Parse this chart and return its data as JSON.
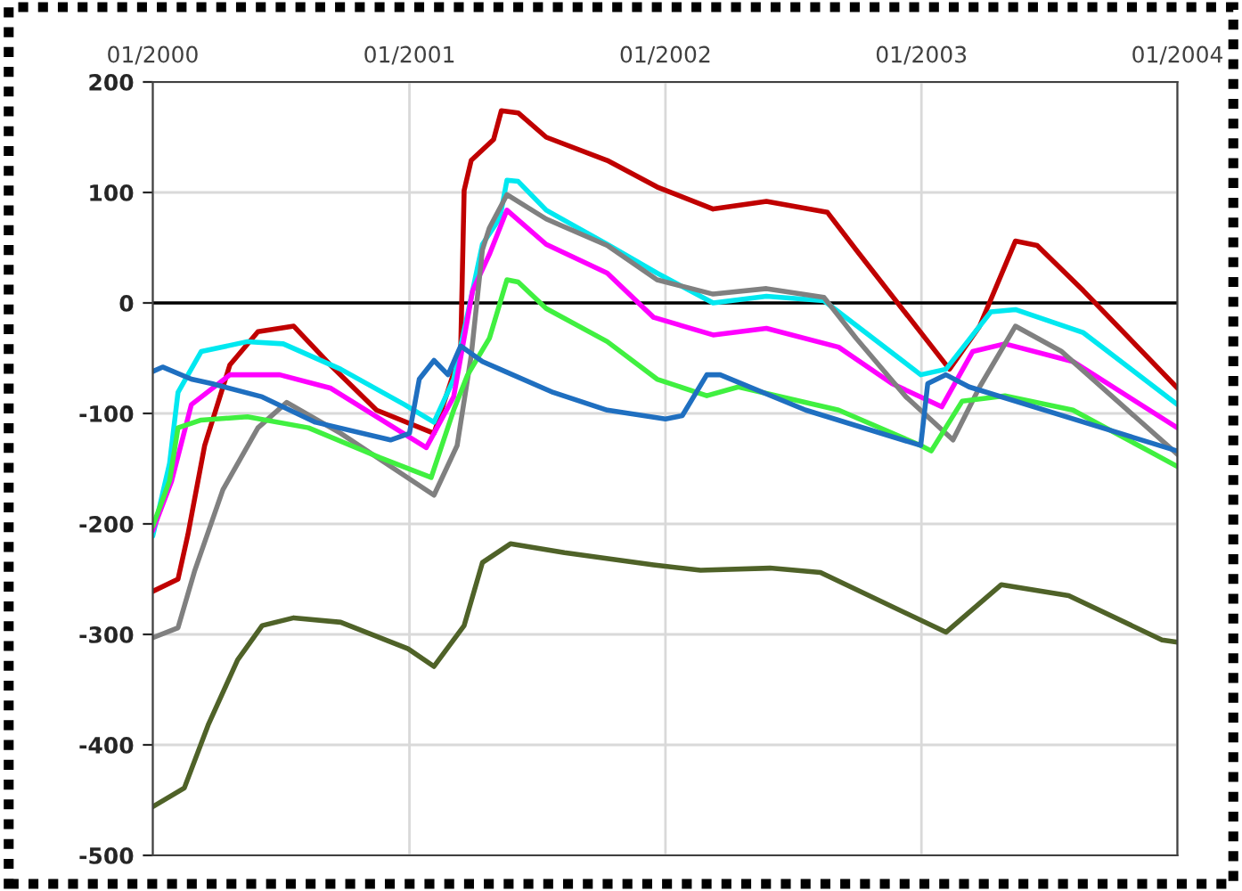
{
  "chart_data": {
    "type": "line",
    "xlim": [
      "2000-01-01",
      "2004-01-01"
    ],
    "xticks": [
      {
        "value": "2000-01-01",
        "label": "01/2000"
      },
      {
        "value": "2001-01-01",
        "label": "01/2001"
      },
      {
        "value": "2002-01-01",
        "label": "01/2002"
      },
      {
        "value": "2003-01-01",
        "label": "01/2003"
      },
      {
        "value": "2004-01-01",
        "label": "01/2004"
      }
    ],
    "ylim": [
      -500,
      200
    ],
    "yticks": [
      -500,
      -400,
      -300,
      -200,
      -100,
      0,
      100,
      200
    ],
    "grid": true,
    "legend": false,
    "marker": "none",
    "line_style": "solid",
    "ref_lines": [
      {
        "axis": "y",
        "value": 0,
        "label": null,
        "color": "#000000"
      }
    ],
    "series": [
      {
        "color": "#c00000",
        "x": [
          "2000-01-01",
          "2000-02-06",
          "2000-02-20",
          "2000-03-15",
          "2000-04-20",
          "2000-05-30",
          "2000-07-20",
          "2000-09-10",
          "2000-11-15",
          "2001-02-05",
          "2001-03-15",
          "2001-03-20",
          "2001-03-30",
          "2001-05-01",
          "2001-05-12",
          "2001-06-05",
          "2001-07-15",
          "2001-10-10",
          "2001-12-20",
          "2002-03-10",
          "2002-05-25",
          "2002-08-20",
          "2002-09-30",
          "2003-02-10",
          "2003-03-25",
          "2003-05-15",
          "2003-06-15",
          "2003-08-20",
          "2004-01-01"
        ],
        "values": [
          -261,
          -250,
          -210,
          -129,
          -56,
          -26,
          -21,
          -56,
          -97,
          -118,
          -44,
          102,
          129,
          148,
          174,
          172,
          150,
          129,
          105,
          85,
          92,
          82,
          48,
          -60,
          -21,
          56,
          52,
          11,
          -77
        ]
      },
      {
        "color": "#00e8f0",
        "x": [
          "2000-01-01",
          "2000-01-25",
          "2000-02-06",
          "2000-03-10",
          "2000-05-15",
          "2000-07-05",
          "2000-09-25",
          "2000-12-25",
          "2001-02-05",
          "2001-03-05",
          "2001-03-30",
          "2001-04-15",
          "2001-05-10",
          "2001-05-20",
          "2001-06-05",
          "2001-07-15",
          "2001-10-10",
          "2001-12-20",
          "2002-03-10",
          "2002-05-25",
          "2002-08-15",
          "2002-12-31",
          "2003-02-05",
          "2003-04-10",
          "2003-05-15",
          "2003-08-20",
          "2004-01-01"
        ],
        "values": [
          -211,
          -145,
          -81,
          -44,
          -35,
          -37,
          -60,
          -92,
          -108,
          -69,
          5,
          53,
          77,
          111,
          110,
          84,
          53,
          27,
          0,
          6,
          2,
          -65,
          -60,
          -8,
          -6,
          -27,
          -92
        ]
      },
      {
        "color": "#ff00ff",
        "x": [
          "2000-01-01",
          "2000-01-28",
          "2000-02-25",
          "2000-04-20",
          "2000-06-30",
          "2000-09-10",
          "2001-01-25",
          "2001-03-05",
          "2001-04-01",
          "2001-04-25",
          "2001-05-20",
          "2001-07-15",
          "2001-10-10",
          "2001-12-15",
          "2002-03-10",
          "2002-05-25",
          "2002-09-05",
          "2002-11-20",
          "2003-01-30",
          "2003-03-15",
          "2003-04-30",
          "2003-08-05",
          "2004-01-01"
        ],
        "values": [
          -206,
          -161,
          -92,
          -65,
          -65,
          -77,
          -131,
          -85,
          11,
          44,
          84,
          53,
          27,
          -13,
          -29,
          -23,
          -40,
          -73,
          -94,
          -44,
          -37,
          -53,
          -113
        ]
      },
      {
        "color": "#808080",
        "x": [
          "2000-01-01",
          "2000-02-06",
          "2000-03-01",
          "2000-04-10",
          "2000-05-30",
          "2000-07-10",
          "2000-09-25",
          "2001-02-05",
          "2001-03-10",
          "2001-03-30",
          "2001-04-15",
          "2001-04-25",
          "2001-05-20",
          "2001-07-15",
          "2001-10-10",
          "2001-12-20",
          "2002-03-10",
          "2002-05-25",
          "2002-08-15",
          "2002-09-30",
          "2002-12-10",
          "2003-02-15",
          "2003-03-25",
          "2003-05-15",
          "2003-07-20",
          "2004-01-01"
        ],
        "values": [
          -303,
          -294,
          -242,
          -169,
          -113,
          -90,
          -118,
          -174,
          -129,
          -48,
          48,
          68,
          98,
          76,
          52,
          21,
          8,
          13,
          5,
          -32,
          -85,
          -124,
          -76,
          -21,
          -44,
          -137
        ]
      },
      {
        "color": "#40f040",
        "x": [
          "2000-01-01",
          "2000-01-25",
          "2000-02-06",
          "2000-03-10",
          "2000-05-15",
          "2000-08-10",
          "2000-11-20",
          "2001-02-01",
          "2001-03-05",
          "2001-03-25",
          "2001-04-25",
          "2001-05-20",
          "2001-06-05",
          "2001-07-15",
          "2001-10-10",
          "2001-12-20",
          "2002-03-01",
          "2002-04-15",
          "2002-09-05",
          "2002-12-31",
          "2003-01-15",
          "2003-02-28",
          "2003-04-30",
          "2003-08-05",
          "2004-01-01"
        ],
        "values": [
          -202,
          -161,
          -113,
          -106,
          -103,
          -113,
          -140,
          -158,
          -97,
          -65,
          -32,
          21,
          19,
          -5,
          -35,
          -69,
          -84,
          -76,
          -97,
          -129,
          -134,
          -89,
          -84,
          -97,
          -148
        ]
      },
      {
        "color": "#1f6fc0",
        "x": [
          "2000-01-01",
          "2000-01-15",
          "2000-02-25",
          "2000-03-25",
          "2000-06-05",
          "2000-08-20",
          "2000-12-05",
          "2001-01-01",
          "2001-01-15",
          "2001-02-05",
          "2001-02-25",
          "2001-03-15",
          "2001-04-15",
          "2001-05-10",
          "2001-07-25",
          "2001-10-10",
          "2002-01-01",
          "2002-01-25",
          "2002-03-01",
          "2002-03-20",
          "2002-07-20",
          "2002-12-31",
          "2003-01-10",
          "2003-02-05",
          "2003-03-10",
          "2004-01-01"
        ],
        "values": [
          -62,
          -58,
          -69,
          -73,
          -85,
          -108,
          -124,
          -118,
          -69,
          -52,
          -65,
          -39,
          -53,
          -60,
          -81,
          -97,
          -105,
          -102,
          -65,
          -65,
          -97,
          -129,
          -73,
          -65,
          -76,
          -134
        ]
      },
      {
        "color": "#4f6228",
        "x": [
          "2000-01-01",
          "2000-02-15",
          "2000-03-20",
          "2000-05-01",
          "2000-06-05",
          "2000-07-20",
          "2000-09-25",
          "2000-12-30",
          "2001-02-05",
          "2001-03-20",
          "2001-04-15",
          "2001-05-25",
          "2001-08-10",
          "2001-12-15",
          "2002-02-20",
          "2002-05-30",
          "2002-08-10",
          "2003-02-05",
          "2003-04-25",
          "2003-07-30",
          "2003-12-10",
          "2004-01-01"
        ],
        "values": [
          -456,
          -439,
          -382,
          -323,
          -292,
          -285,
          -289,
          -313,
          -329,
          -292,
          -235,
          -218,
          -226,
          -237,
          -242,
          -240,
          -244,
          -298,
          -255,
          -265,
          -305,
          -307
        ]
      }
    ]
  }
}
